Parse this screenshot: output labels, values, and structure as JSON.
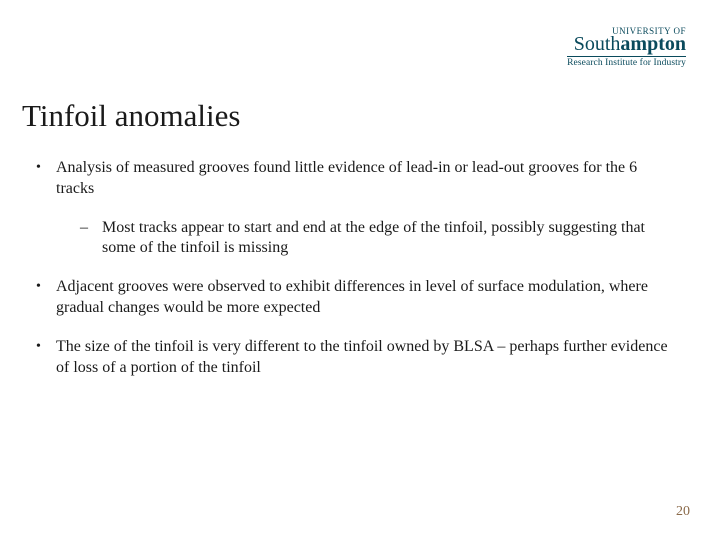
{
  "logo": {
    "top": "UNIVERSITY OF",
    "main_light": "South",
    "main_bold": "ampton",
    "sub": "Research Institute for Industry"
  },
  "title": "Tinfoil anomalies",
  "bullets": [
    {
      "text": "Analysis of measured grooves found little evidence of lead-in or lead-out grooves for the 6 tracks",
      "sub": [
        "Most tracks appear to start and end at the edge of the tinfoil, possibly suggesting that some of the tinfoil is missing"
      ]
    },
    {
      "text": "Adjacent grooves were observed to exhibit differences in level of surface modulation, where gradual changes would be more expected",
      "sub": []
    },
    {
      "text": "The size of the tinfoil is very different to the tinfoil owned by BLSA – perhaps further evidence of loss of a portion of the tinfoil",
      "sub": []
    }
  ],
  "page_number": "20",
  "colors": {
    "logo": "#0a4a5c",
    "text": "#1a1a1a",
    "page_num": "#8b6a4a",
    "background": "#ffffff"
  },
  "typography": {
    "title_fontsize": 31,
    "body_fontsize": 16,
    "font_family": "Georgia, serif"
  }
}
